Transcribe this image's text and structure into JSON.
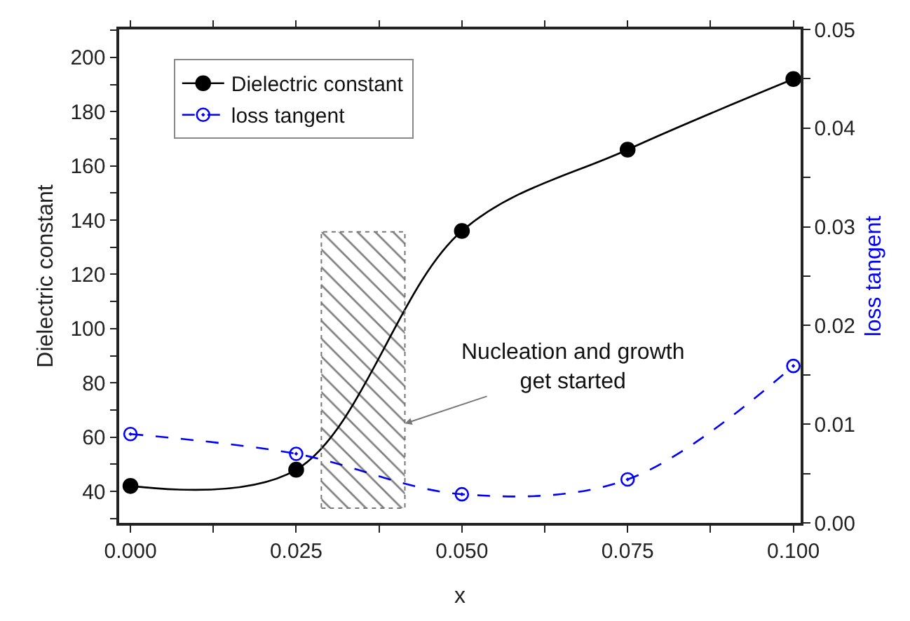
{
  "chart_data": {
    "type": "line",
    "xlabel": "x",
    "ylabel": "Dielectric constant",
    "y2label": "loss tangent",
    "x": [
      0.0,
      0.025,
      0.05,
      0.075,
      0.1
    ],
    "series": [
      {
        "name": "Dielectric constant",
        "color": "#000000",
        "values": [
          42,
          48,
          136,
          166,
          192
        ],
        "line_style": "solid"
      },
      {
        "name": "loss tangent",
        "color": "#0000ff",
        "values": [
          0.009,
          0.007,
          0.0029,
          0.0044,
          0.0159
        ],
        "axis": "y2",
        "line_style": "dashed"
      }
    ],
    "xlim": [
      -0.0017,
      0.1011
    ],
    "xticks": [
      {
        "value": 0.0,
        "label": "0.000"
      },
      {
        "value": 0.0125,
        "label": null
      },
      {
        "value": 0.025,
        "label": "0.025"
      },
      {
        "value": 0.0375,
        "label": null
      },
      {
        "value": 0.05,
        "label": "0.050"
      },
      {
        "value": 0.0625,
        "label": null
      },
      {
        "value": 0.075,
        "label": "0.075"
      },
      {
        "value": 0.0875,
        "label": null
      },
      {
        "value": 0.1,
        "label": "0.100"
      }
    ],
    "ylim": [
      28.4,
      210.3
    ],
    "yticks": [
      {
        "value": 30,
        "label": null
      },
      40,
      {
        "value": 50,
        "label": null
      },
      60,
      {
        "value": 70,
        "label": null
      },
      80,
      {
        "value": 90,
        "label": null
      },
      100,
      {
        "value": 110,
        "label": null
      },
      120,
      {
        "value": 130,
        "label": null
      },
      140,
      {
        "value": 150,
        "label": null
      },
      160,
      {
        "value": 170,
        "label": null
      },
      180,
      {
        "value": 190,
        "label": null
      },
      200,
      {
        "value": 210,
        "label": null
      }
    ],
    "y2lim": [
      0,
      0.05
    ],
    "y2ticks": [
      {
        "value": 0,
        "label": "0.00"
      },
      {
        "value": 0.005,
        "label": null
      },
      {
        "value": 0.01,
        "label": "0.01"
      },
      {
        "value": 0.015,
        "label": null
      },
      {
        "value": 0.02,
        "label": "0.02"
      },
      {
        "value": 0.025,
        "label": null
      },
      {
        "value": 0.03,
        "label": "0.03"
      },
      {
        "value": 0.035,
        "label": null
      },
      {
        "value": 0.04,
        "label": "0.04"
      },
      {
        "value": 0.045,
        "label": null
      },
      {
        "value": 0.05,
        "label": "0.05"
      }
    ],
    "bands": [
      {
        "axis": "x",
        "from": 0.0288,
        "to": 0.0414,
        "color": "#000000"
      }
    ],
    "annotations": [
      {
        "text": "Nucleation and growth\nget started",
        "x": 0.0414,
        "y": 65
      }
    ],
    "marker": "circle",
    "legend": "top left"
  }
}
